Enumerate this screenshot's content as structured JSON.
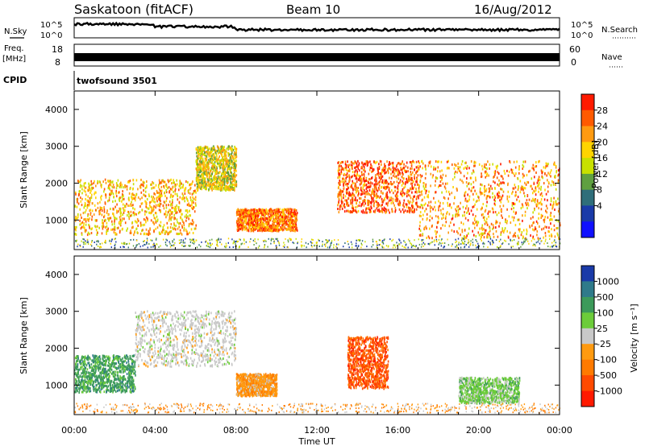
{
  "header": {
    "station": "Saskatoon (fitACF)",
    "beam": "Beam 10",
    "date": "16/Aug/2012"
  },
  "side_labels": {
    "nsky": "N.Sky",
    "nsky_hi": "10^5",
    "nsky_lo": "10^0",
    "nsearch": "N.Search",
    "nsearch_hi": "10^5",
    "nsearch_lo": "10^0",
    "freq_line1": "Freq.",
    "freq_line2": "[MHz]",
    "freq_hi": "18",
    "freq_lo": "8",
    "nave": "Nave",
    "nave_hi": "60",
    "nave_lo": "0",
    "cpid": "CPID",
    "cpid_value": "twofsound 3501"
  },
  "power_panel": {
    "ylabel": "Slant Range [km]",
    "cbar_label": "Power [dB]",
    "cbar_ticks": [
      "28",
      "24",
      "20",
      "16",
      "12",
      "8",
      "4"
    ],
    "cbar_colors": [
      "#ff1a00",
      "#ff5a00",
      "#ff9a10",
      "#ffd400",
      "#c8e000",
      "#5fa040",
      "#2f6e7a",
      "#1a3aa8",
      "#1010ff"
    ]
  },
  "velocity_panel": {
    "ylabel": "Slant Range [km]",
    "cbar_label": "Velocity [m s⁻¹]",
    "cbar_ticks": [
      "1000",
      "500",
      "100",
      "25",
      "-25",
      "-100",
      "-500",
      "-1000"
    ],
    "cbar_colors": [
      "#1a3aa8",
      "#2f7a8a",
      "#3c9a5a",
      "#6ccc3a",
      "#c9c9c9",
      "#ff9a10",
      "#ff7a00",
      "#ff4a00",
      "#ff1a00"
    ]
  },
  "x_axis": {
    "xlabel": "Time UT",
    "tick_labels": [
      "00:00",
      "04:00",
      "08:00",
      "12:00",
      "16:00",
      "20:00",
      "00:00"
    ]
  },
  "chart_data": [
    {
      "type": "line",
      "title": "N.Sky / N.Search",
      "x_range_hours": [
        0,
        24
      ],
      "ylim_log": [
        0,
        5
      ],
      "ylabels": [
        "10^0",
        "10^5"
      ]
    },
    {
      "type": "line",
      "title": "Freq. [MHz] / Nave",
      "x_range_hours": [
        0,
        24
      ],
      "freq_ylim": [
        8,
        18
      ],
      "nave_ylim": [
        0,
        60
      ]
    },
    {
      "type": "heatmap",
      "title": "Power [dB]",
      "xlabel": "Time UT",
      "ylabel": "Slant Range [km]",
      "xlim_hours": [
        0,
        24
      ],
      "ylim_km": [
        200,
        4500
      ],
      "yticks": [
        1000,
        2000,
        3000,
        4000
      ],
      "colorbar_ticks": [
        4,
        8,
        12,
        16,
        20,
        24,
        28
      ],
      "scatter_bands": [
        {
          "t_start": 0,
          "t_end": 6,
          "range_km": [
            600,
            2100
          ],
          "level_db": 18
        },
        {
          "t_start": 6,
          "t_end": 8,
          "range_km": [
            1800,
            3000
          ],
          "level_db": 14
        },
        {
          "t_start": 8,
          "t_end": 11,
          "range_km": [
            700,
            1300
          ],
          "level_db": 22
        },
        {
          "t_start": 13,
          "t_end": 17,
          "range_km": [
            1200,
            2600
          ],
          "level_db": 24
        },
        {
          "t_start": 17,
          "t_end": 24,
          "range_km": [
            500,
            2600
          ],
          "level_db": 20
        }
      ]
    },
    {
      "type": "heatmap",
      "title": "Velocity [m s-1]",
      "xlabel": "Time UT",
      "ylabel": "Slant Range [km]",
      "xlim_hours": [
        0,
        24
      ],
      "ylim_km": [
        200,
        4500
      ],
      "yticks": [
        1000,
        2000,
        3000,
        4000
      ],
      "colorbar_ticks": [
        -1000,
        -500,
        -100,
        -25,
        25,
        100,
        500,
        1000
      ],
      "scatter_bands": [
        {
          "t_start": 0,
          "t_end": 3,
          "range_km": [
            800,
            1800
          ],
          "velocity": 300
        },
        {
          "t_start": 3,
          "t_end": 8,
          "range_km": [
            1500,
            3000
          ],
          "velocity": 0
        },
        {
          "t_start": 8,
          "t_end": 10,
          "range_km": [
            700,
            1300
          ],
          "velocity": -200
        },
        {
          "t_start": 13.5,
          "t_end": 15.5,
          "range_km": [
            900,
            2300
          ],
          "velocity": -600
        },
        {
          "t_start": 19,
          "t_end": 22,
          "range_km": [
            500,
            1200
          ],
          "velocity": 80
        }
      ]
    }
  ]
}
